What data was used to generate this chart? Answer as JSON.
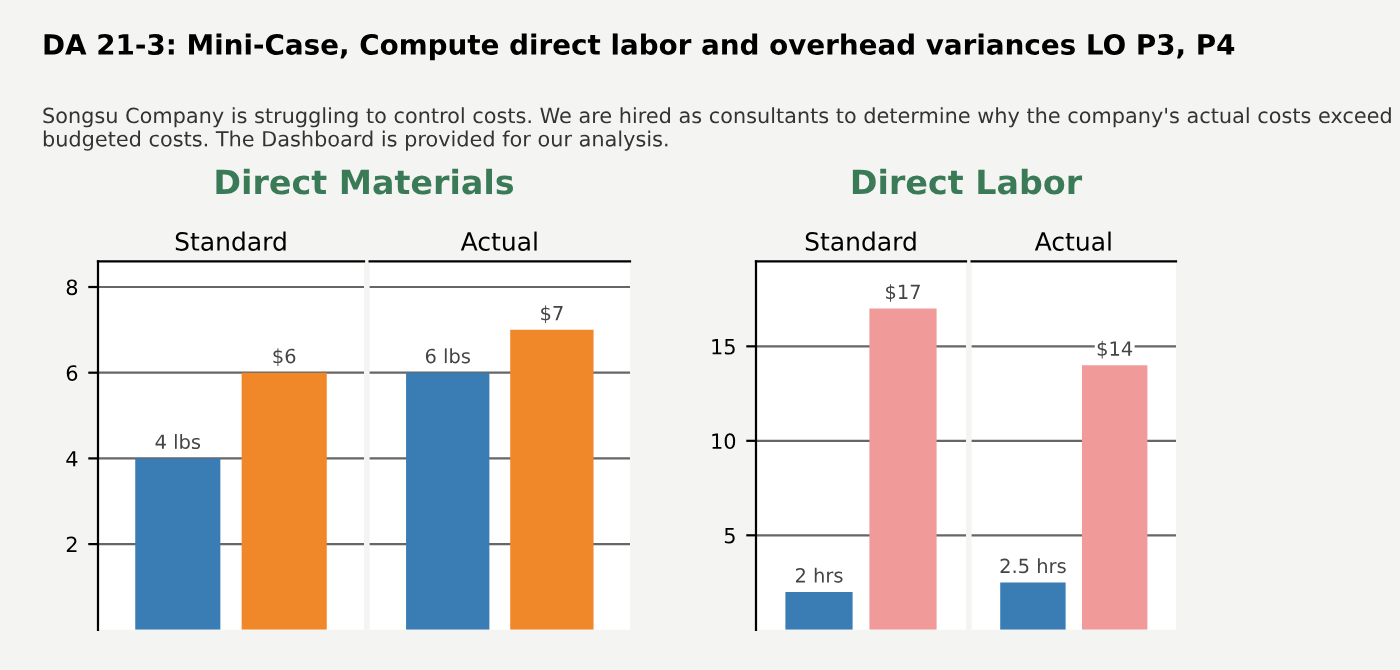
{
  "chart_data": [
    {
      "type": "bar",
      "title": "Direct Materials",
      "annotations": [
        "DA 21-3: Mini-Case, Compute direct labor and overhead variances LO P3, P4",
        "Songsu Company is struggling to control costs. We are hired as consultants to determine why the company's actual costs exceed budgeted costs. The Dashboard is provided for our analysis."
      ],
      "categories": [
        "Standard",
        "Actual"
      ],
      "series": [
        {
          "color": "#3a7db5",
          "values": [
            4,
            6
          ],
          "value_labels": [
            "4 lbs",
            "6 lbs"
          ]
        },
        {
          "color": "#f0882a",
          "values": [
            6,
            7
          ],
          "value_labels": [
            "$6",
            "$7"
          ]
        }
      ],
      "ylim": [
        0,
        8.6
      ],
      "yticks": [
        2,
        4,
        6,
        8
      ],
      "grid": "y",
      "legend": false
    },
    {
      "type": "bar",
      "title": "Direct Labor",
      "categories": [
        "Standard",
        "Actual"
      ],
      "series": [
        {
          "color": "#3a7db5",
          "values": [
            2,
            2.5
          ],
          "value_labels": [
            "2 hrs",
            "2.5 hrs"
          ]
        },
        {
          "color": "#f09a9a",
          "values": [
            17,
            14
          ],
          "value_labels": [
            "$17",
            "$14"
          ]
        }
      ],
      "ylim": [
        0,
        19.5
      ],
      "yticks": [
        5,
        10,
        15
      ],
      "grid": "y",
      "legend": false
    }
  ]
}
